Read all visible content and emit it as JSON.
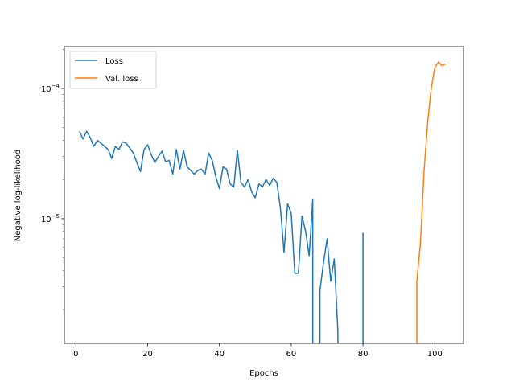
{
  "chart_data": {
    "type": "line",
    "title": "",
    "xlabel": "Epochs",
    "ylabel": "Negative log-likelihood",
    "xlim": [
      -3.2,
      108
    ],
    "ylim": [
      1.1e-06,
      0.00021
    ],
    "yscale": "log",
    "grid": false,
    "legend_position": "top-left",
    "x_ticks": [
      {
        "value": 0,
        "label": "0"
      },
      {
        "value": 20,
        "label": "20"
      },
      {
        "value": 40,
        "label": "40"
      },
      {
        "value": 60,
        "label": "60"
      },
      {
        "value": 80,
        "label": "80"
      },
      {
        "value": 100,
        "label": "100"
      }
    ],
    "y_ticks": [
      {
        "value": 1e-05,
        "base": "10",
        "exp": "−5"
      },
      {
        "value": 0.0001,
        "base": "10",
        "exp": "−4"
      }
    ],
    "series": [
      {
        "name": "Loss",
        "color": "#1f77b4",
        "points": [
          [
            1,
            4.7e-05
          ],
          [
            2,
            4.1e-05
          ],
          [
            3,
            4.7e-05
          ],
          [
            4,
            4.2e-05
          ],
          [
            5,
            3.6e-05
          ],
          [
            6,
            4e-05
          ],
          [
            7,
            3.8e-05
          ],
          [
            8,
            3.6e-05
          ],
          [
            9,
            3.4e-05
          ],
          [
            10,
            2.9e-05
          ],
          [
            11,
            3.6e-05
          ],
          [
            12,
            3.4e-05
          ],
          [
            13,
            3.9e-05
          ],
          [
            14,
            3.8e-05
          ],
          [
            15,
            3.5e-05
          ],
          [
            16,
            3.2e-05
          ],
          [
            17,
            2.7e-05
          ],
          [
            18,
            2.3e-05
          ],
          [
            19,
            3.4e-05
          ],
          [
            20,
            3.7e-05
          ],
          [
            21,
            3.1e-05
          ],
          [
            22,
            2.7e-05
          ],
          [
            23,
            3e-05
          ],
          [
            24,
            3.3e-05
          ],
          [
            25,
            2.75e-05
          ],
          [
            26,
            2.8e-05
          ],
          [
            27,
            2.2e-05
          ],
          [
            28,
            3.4e-05
          ],
          [
            29,
            2.4e-05
          ],
          [
            30,
            3.35e-05
          ],
          [
            31,
            2.5e-05
          ],
          [
            32,
            2.35e-05
          ],
          [
            33,
            2.2e-05
          ],
          [
            34,
            2.35e-05
          ],
          [
            35,
            2.4e-05
          ],
          [
            36,
            2.2e-05
          ],
          [
            37,
            3.2e-05
          ],
          [
            38,
            2.8e-05
          ],
          [
            39,
            2.1e-05
          ],
          [
            40,
            1.7e-05
          ],
          [
            41,
            2.5e-05
          ],
          [
            42,
            2.4e-05
          ],
          [
            43,
            1.85e-05
          ],
          [
            44,
            1.75e-05
          ],
          [
            45,
            3.35e-05
          ],
          [
            46,
            1.9e-05
          ],
          [
            47,
            1.75e-05
          ],
          [
            48,
            2e-05
          ],
          [
            49,
            1.6e-05
          ],
          [
            50,
            1.45e-05
          ],
          [
            51,
            1.85e-05
          ],
          [
            52,
            1.75e-05
          ],
          [
            53,
            2e-05
          ],
          [
            54,
            1.8e-05
          ],
          [
            55,
            2.05e-05
          ],
          [
            56,
            1.9e-05
          ],
          [
            57,
            1.2e-05
          ],
          [
            58,
            5.5e-06
          ],
          [
            59,
            1.3e-05
          ],
          [
            60,
            1.1e-05
          ],
          [
            61,
            3.8e-06
          ],
          [
            62,
            3.8e-06
          ],
          [
            63,
            1.05e-05
          ],
          [
            64,
            8e-06
          ],
          [
            65,
            5.2e-06
          ],
          [
            66,
            1.4e-05
          ],
          [
            66,
            1.1e-06
          ],
          [
            null,
            null
          ],
          [
            68,
            1.1e-06
          ],
          [
            68,
            2.8e-06
          ],
          [
            69,
            4.6e-06
          ],
          [
            70,
            7e-06
          ],
          [
            71,
            3.3e-06
          ],
          [
            72,
            4.9e-06
          ],
          [
            73,
            1.35e-06
          ],
          [
            73,
            1.1e-06
          ],
          [
            null,
            null
          ],
          [
            80,
            1.1e-06
          ],
          [
            80,
            7.8e-06
          ]
        ]
      },
      {
        "name": "Val. loss",
        "color": "#ff7f0e",
        "points": [
          [
            95,
            1.1e-06
          ],
          [
            95,
            3.3e-06
          ],
          [
            96,
            6.5e-06
          ],
          [
            97,
            2.3e-05
          ],
          [
            98,
            5.5e-05
          ],
          [
            99,
            0.0001
          ],
          [
            100,
            0.000145
          ],
          [
            101,
            0.00016
          ],
          [
            102,
            0.00015
          ],
          [
            103,
            0.000155
          ]
        ]
      }
    ]
  }
}
